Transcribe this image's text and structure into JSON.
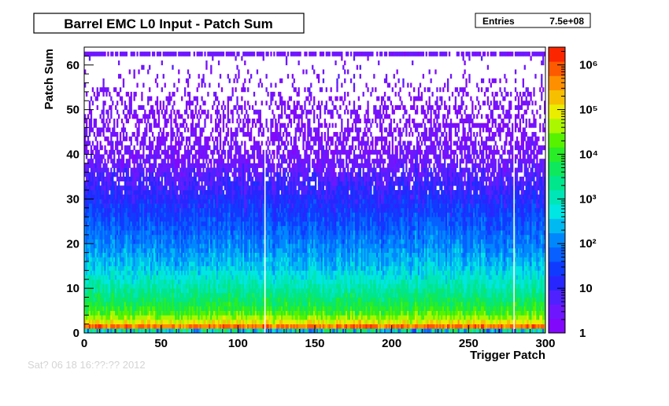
{
  "title": "Barrel EMC L0 Input - Patch Sum",
  "stats": {
    "label": "Entries",
    "value": "7.5e+08"
  },
  "faded_text": "Sat? 06 18 16:??:?? 2012",
  "chart_data": {
    "type": "heatmap",
    "title": "Barrel EMC L0 Input - Patch Sum",
    "xlabel": "Trigger Patch",
    "ylabel": "Patch Sum",
    "xlim": [
      0,
      300
    ],
    "ylim": [
      0,
      64
    ],
    "x_ticks": [
      0,
      50,
      100,
      150,
      200,
      250,
      300
    ],
    "y_ticks": [
      0,
      10,
      20,
      30,
      40,
      50,
      60
    ],
    "z_scale": "log",
    "zlim": [
      1,
      2500000
    ],
    "z_ticks": [
      {
        "value": 1,
        "label": "1"
      },
      {
        "value": 10,
        "label": "10"
      },
      {
        "value": 100,
        "label": "10²"
      },
      {
        "value": 1000,
        "label": "10³"
      },
      {
        "value": 10000,
        "label": "10⁴"
      },
      {
        "value": 100000,
        "label": "10⁵"
      },
      {
        "value": 1000000,
        "label": "10⁶"
      }
    ],
    "bins": {
      "x_count": 300,
      "y_count": 64,
      "x_width": 1,
      "y_width": 1
    },
    "density_profile": [
      {
        "patch_sum": 0,
        "approx_counts": 1000
      },
      {
        "patch_sum": 1,
        "approx_counts": 2000000
      },
      {
        "patch_sum": 2,
        "approx_counts": 150000
      },
      {
        "patch_sum": 3,
        "approx_counts": 50000
      },
      {
        "patch_sum": 5,
        "approx_counts": 10000
      },
      {
        "patch_sum": 10,
        "approx_counts": 1500
      },
      {
        "patch_sum": 15,
        "approx_counts": 300
      },
      {
        "patch_sum": 20,
        "approx_counts": 100
      },
      {
        "patch_sum": 25,
        "approx_counts": 40
      },
      {
        "patch_sum": 30,
        "approx_counts": 15
      },
      {
        "patch_sum": 35,
        "approx_counts": 6
      },
      {
        "patch_sum": 40,
        "approx_counts": 2
      },
      {
        "patch_sum": 50,
        "approx_counts": 1
      },
      {
        "patch_sum": 62,
        "approx_counts": 3
      }
    ],
    "overflow_row": {
      "patch_sum": 62,
      "approx_counts": 3
    },
    "empty_columns": [
      117,
      279
    ],
    "grid": false,
    "legend": "color-bar-right"
  }
}
